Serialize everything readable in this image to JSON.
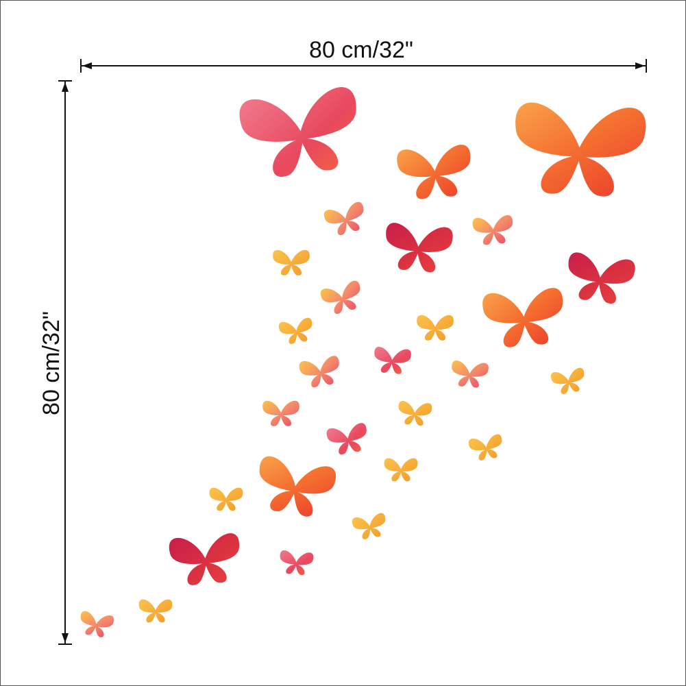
{
  "dimensions": {
    "width_label": "80 cm/32\"",
    "height_label": "80 cm/32\""
  }
}
